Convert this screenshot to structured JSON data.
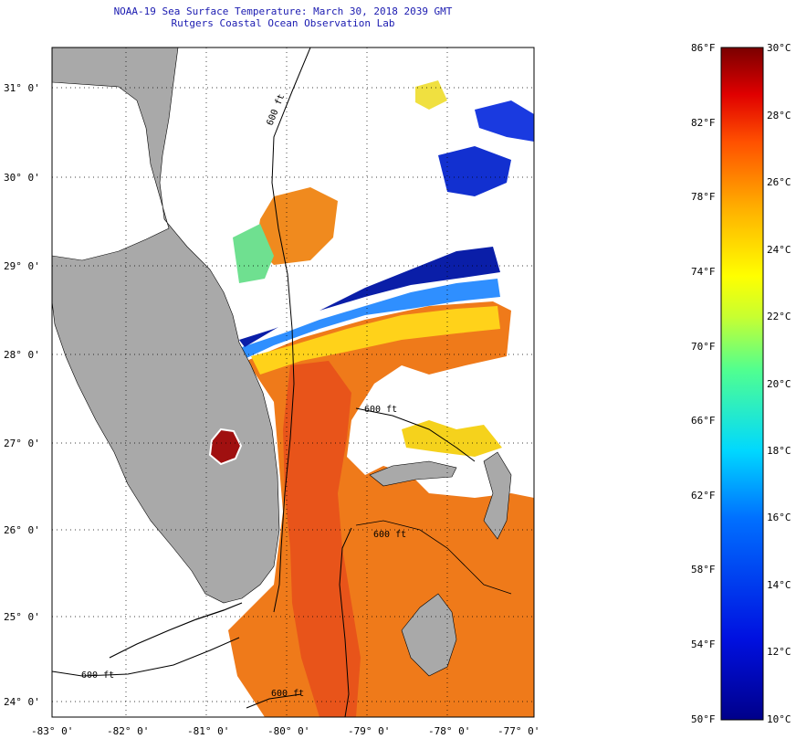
{
  "header": {
    "title_line1": "NOAA-19 Sea Surface Temperature:  March 30, 2018 2039 GMT",
    "title_line2": "Rutgers Coastal Ocean Observation Lab"
  },
  "map": {
    "lon_labels": [
      "-83° 0'",
      "-82° 0'",
      "-81° 0'",
      "-80° 0'",
      "-79° 0'",
      "-78° 0'",
      "-77° 0'"
    ],
    "lat_labels": [
      "31° 0'",
      "30° 0'",
      "29° 0'",
      "28° 0'",
      "27° 0'",
      "26° 0'",
      "25° 0'",
      "24° 0'"
    ],
    "contour_labels": [
      "600 ft",
      "600 ft",
      "600 ft",
      "600 ft",
      "600 ft"
    ],
    "colors": {
      "land": "#a9a9a9",
      "cloud": "#ffffff",
      "warm": "#ef7a1a",
      "hot": "#e8541a",
      "cool": "#2f6fe0",
      "cold": "#0a1ea8"
    }
  },
  "colorbar": {
    "fahrenheit_labels": [
      "86°F",
      "82°F",
      "78°F",
      "74°F",
      "70°F",
      "66°F",
      "62°F",
      "58°F",
      "54°F",
      "50°F"
    ],
    "celsius_labels": [
      "30°C",
      "28°C",
      "26°C",
      "24°C",
      "22°C",
      "20°C",
      "18°C",
      "16°C",
      "14°C",
      "12°C",
      "10°C"
    ],
    "range_f": [
      50,
      86
    ],
    "range_c": [
      10,
      30
    ]
  }
}
